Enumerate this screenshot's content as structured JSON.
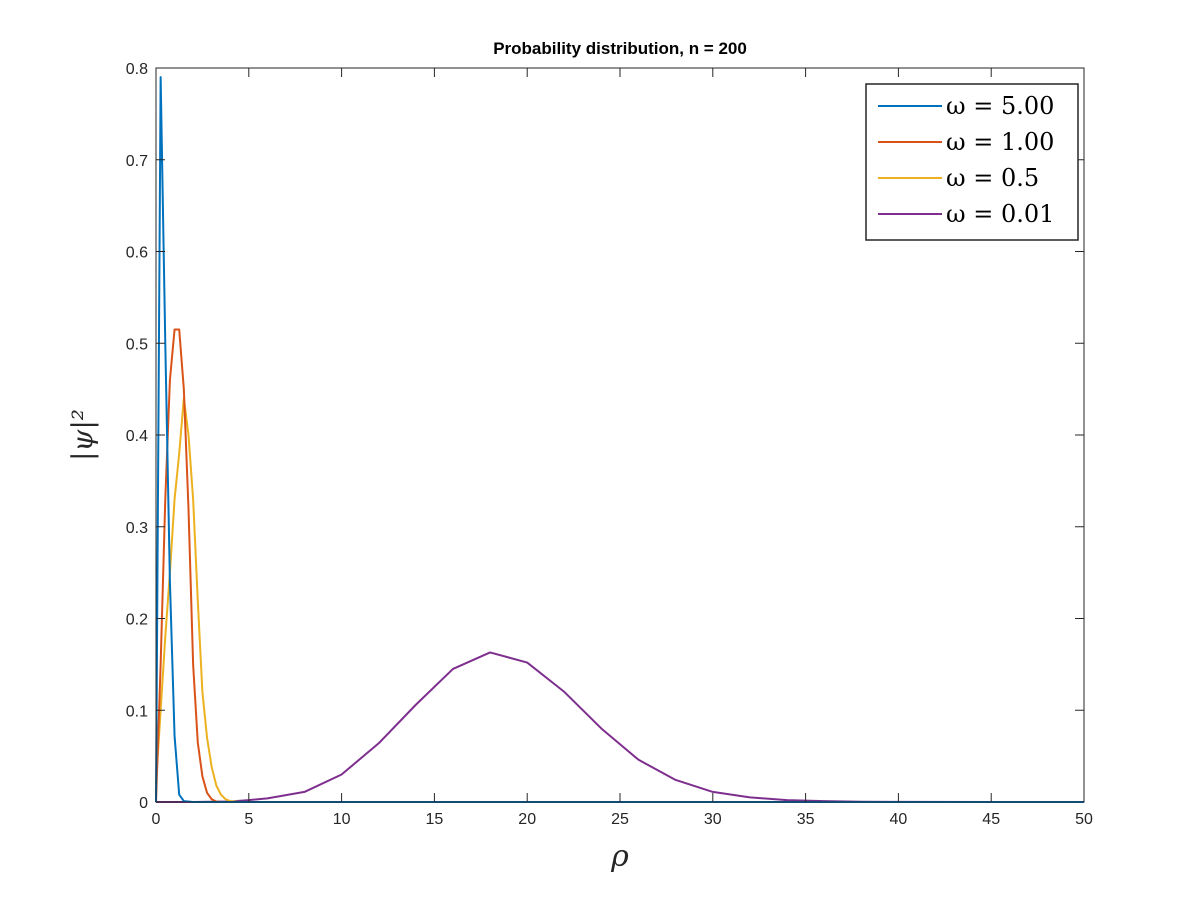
{
  "chart_data": {
    "type": "line",
    "title": "Probability distribution, n = 200",
    "xlabel": "ρ",
    "ylabel": "|ψ|²",
    "xlim": [
      0,
      50
    ],
    "ylim": [
      0,
      0.8
    ],
    "xticks": [
      0,
      5,
      10,
      15,
      20,
      25,
      30,
      35,
      40,
      45,
      50
    ],
    "yticks": [
      0,
      0.1,
      0.2,
      0.3,
      0.4,
      0.5,
      0.6,
      0.7,
      0.8
    ],
    "xtick_labels": [
      "0",
      "5",
      "10",
      "15",
      "20",
      "25",
      "30",
      "35",
      "40",
      "45",
      "50"
    ],
    "ytick_labels": [
      "0",
      "0.1",
      "0.2",
      "0.3",
      "0.4",
      "0.5",
      "0.6",
      "0.7",
      "0.8"
    ],
    "legend_position": "top-right",
    "grid": false,
    "series": [
      {
        "name": "ω = 5.00",
        "color": "#0072BD",
        "x": [
          0,
          0.25,
          0.5,
          0.75,
          1.0,
          1.25,
          1.5,
          2,
          50
        ],
        "y": [
          0,
          0.79,
          0.5,
          0.24,
          0.072,
          0.008,
          0.001,
          0,
          0
        ]
      },
      {
        "name": "ω = 1.00",
        "color": "#D95319",
        "x": [
          0,
          0.25,
          0.5,
          0.75,
          1.0,
          1.25,
          1.5,
          1.75,
          2.0,
          2.25,
          2.5,
          2.75,
          3.0,
          3.25,
          3.5,
          4,
          50
        ],
        "y": [
          0,
          0.15,
          0.33,
          0.46,
          0.515,
          0.515,
          0.45,
          0.32,
          0.15,
          0.065,
          0.028,
          0.01,
          0.003,
          0.0005,
          0,
          0,
          0
        ]
      },
      {
        "name": "ω = 0.5",
        "color": "#EDB120",
        "x": [
          0,
          0.25,
          0.5,
          0.75,
          1.0,
          1.25,
          1.5,
          1.75,
          2.0,
          2.25,
          2.5,
          2.75,
          3.0,
          3.25,
          3.5,
          3.75,
          4.0,
          4.5,
          5,
          50
        ],
        "y": [
          0.02,
          0.1,
          0.18,
          0.25,
          0.33,
          0.38,
          0.44,
          0.4,
          0.33,
          0.22,
          0.12,
          0.07,
          0.038,
          0.018,
          0.008,
          0.003,
          0.001,
          0,
          0,
          0
        ]
      },
      {
        "name": "ω = 0.01",
        "color": "#7E2F8E",
        "x": [
          0,
          2,
          4,
          5,
          6,
          8,
          10,
          12,
          14,
          16,
          18,
          20,
          22,
          24,
          26,
          28,
          30,
          32,
          34,
          36,
          38,
          40,
          45,
          50
        ],
        "y": [
          0,
          0,
          0.0005,
          0.002,
          0.004,
          0.011,
          0.03,
          0.064,
          0.106,
          0.145,
          0.163,
          0.152,
          0.12,
          0.08,
          0.046,
          0.024,
          0.011,
          0.005,
          0.002,
          0.001,
          0.0003,
          0.0001,
          0,
          0
        ]
      }
    ]
  }
}
